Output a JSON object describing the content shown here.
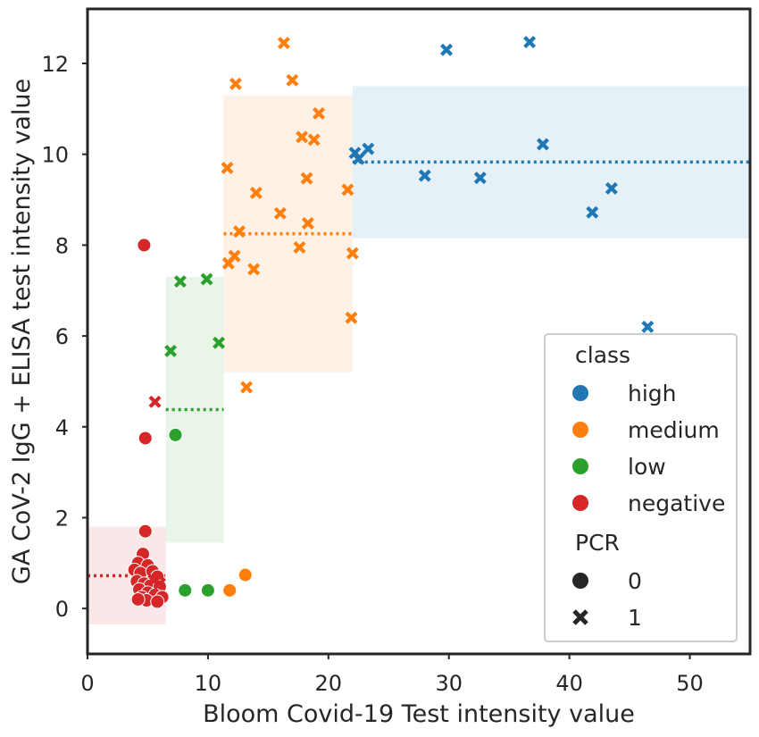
{
  "chart_data": {
    "type": "scatter",
    "title": "",
    "xlabel": "Bloom Covid-19 Test intensity value",
    "ylabel": "GA CoV-2 IgG + ELISA test intensity value",
    "xlim": [
      0,
      55
    ],
    "ylim": [
      -1,
      13.2
    ],
    "xticks": [
      0,
      10,
      20,
      30,
      40,
      50
    ],
    "yticks": [
      0,
      2,
      4,
      6,
      8,
      10,
      12
    ],
    "grid": false,
    "legend_position": "lower-right",
    "legend": {
      "hue_title": "class",
      "hue_entries": [
        {
          "label": "high",
          "color": "#1f77b4"
        },
        {
          "label": "medium",
          "color": "#ff7f0e"
        },
        {
          "label": "low",
          "color": "#2ca02c"
        },
        {
          "label": "negative",
          "color": "#d62728"
        }
      ],
      "style_title": "PCR",
      "style_entries": [
        {
          "label": "0",
          "marker": "circle"
        },
        {
          "label": "1",
          "marker": "x"
        }
      ]
    },
    "regions": [
      {
        "class": "negative",
        "x": [
          0,
          6.5
        ],
        "y": [
          -0.35,
          1.8
        ],
        "mean_y": 0.72,
        "color": "#d62728"
      },
      {
        "class": "low",
        "x": [
          6.5,
          11.3
        ],
        "y": [
          1.45,
          7.3
        ],
        "mean_y": 4.38,
        "color": "#2ca02c"
      },
      {
        "class": "medium",
        "x": [
          11.3,
          22
        ],
        "y": [
          5.2,
          11.3
        ],
        "mean_y": 8.25,
        "color": "#ff7f0e"
      },
      {
        "class": "high",
        "x": [
          22,
          55
        ],
        "y": [
          8.15,
          11.5
        ],
        "mean_y": 9.83,
        "color": "#1f77b4"
      }
    ],
    "series": [
      {
        "class": "high",
        "pcr": 1,
        "points": [
          [
            36.7,
            12.47
          ],
          [
            29.8,
            12.3
          ],
          [
            37.8,
            10.22
          ],
          [
            23.3,
            10.12
          ],
          [
            22.2,
            10.03
          ],
          [
            22.5,
            9.9
          ],
          [
            28.0,
            9.53
          ],
          [
            32.6,
            9.48
          ],
          [
            43.5,
            9.25
          ],
          [
            41.9,
            8.72
          ],
          [
            46.5,
            6.2
          ]
        ]
      },
      {
        "class": "medium",
        "pcr": 1,
        "points": [
          [
            16.3,
            12.45
          ],
          [
            17.0,
            11.63
          ],
          [
            12.3,
            11.55
          ],
          [
            19.2,
            10.9
          ],
          [
            17.8,
            10.38
          ],
          [
            18.8,
            10.32
          ],
          [
            11.6,
            9.7
          ],
          [
            18.2,
            9.47
          ],
          [
            21.6,
            9.22
          ],
          [
            14.0,
            9.15
          ],
          [
            16.0,
            8.7
          ],
          [
            18.3,
            8.48
          ],
          [
            12.6,
            8.3
          ],
          [
            17.6,
            7.95
          ],
          [
            22.0,
            7.82
          ],
          [
            12.2,
            7.76
          ],
          [
            11.7,
            7.6
          ],
          [
            13.8,
            7.47
          ],
          [
            21.9,
            6.4
          ],
          [
            13.2,
            4.87
          ]
        ]
      },
      {
        "class": "medium",
        "pcr": 0,
        "points": [
          [
            13.1,
            0.74
          ],
          [
            11.8,
            0.4
          ]
        ]
      },
      {
        "class": "low",
        "pcr": 1,
        "points": [
          [
            7.7,
            7.2
          ],
          [
            9.9,
            7.25
          ],
          [
            6.9,
            5.67
          ],
          [
            10.9,
            5.85
          ]
        ]
      },
      {
        "class": "low",
        "pcr": 0,
        "points": [
          [
            7.3,
            3.82
          ],
          [
            8.1,
            0.4
          ],
          [
            10.0,
            0.4
          ]
        ]
      },
      {
        "class": "negative",
        "pcr": 0,
        "points": [
          [
            4.7,
            8.0
          ],
          [
            4.8,
            3.75
          ],
          [
            4.8,
            1.7
          ],
          [
            4.6,
            1.2
          ],
          [
            4.2,
            1.0
          ],
          [
            5.0,
            0.95
          ],
          [
            3.9,
            0.85
          ],
          [
            4.4,
            0.78
          ],
          [
            5.4,
            0.82
          ],
          [
            5.8,
            0.7
          ],
          [
            4.1,
            0.6
          ],
          [
            4.7,
            0.55
          ],
          [
            5.2,
            0.5
          ],
          [
            6.0,
            0.48
          ],
          [
            4.3,
            0.42
          ],
          [
            5.0,
            0.35
          ],
          [
            5.6,
            0.3
          ],
          [
            4.5,
            0.25
          ],
          [
            6.2,
            0.25
          ],
          [
            4.9,
            0.18
          ],
          [
            5.8,
            0.15
          ],
          [
            4.2,
            0.2
          ]
        ]
      },
      {
        "class": "negative",
        "pcr": 1,
        "points": [
          [
            5.6,
            4.55
          ],
          [
            5.5,
            0.62
          ],
          [
            6.0,
            0.55
          ]
        ]
      }
    ]
  }
}
